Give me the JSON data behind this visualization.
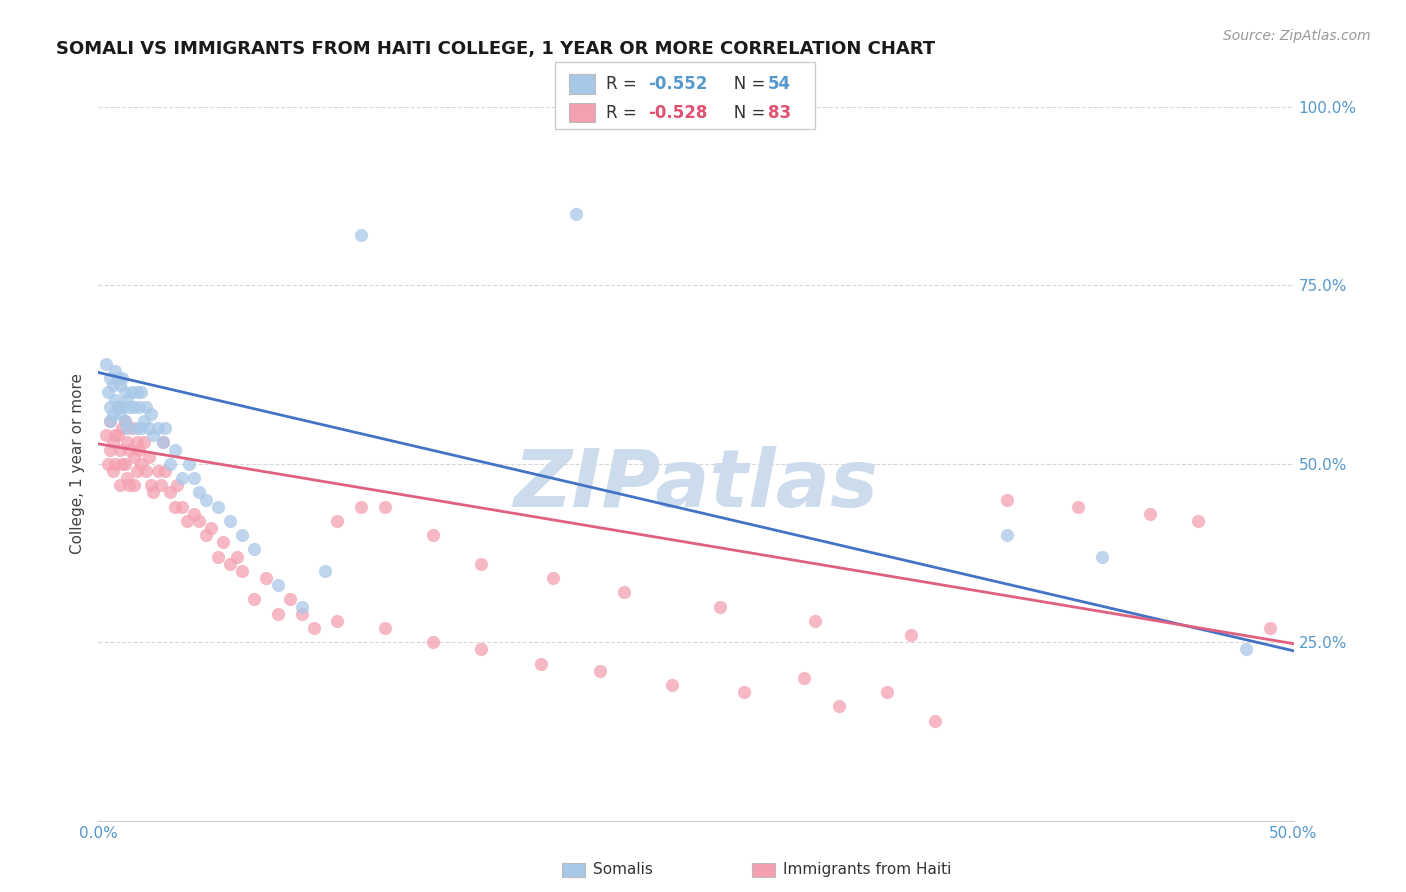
{
  "title": "SOMALI VS IMMIGRANTS FROM HAITI COLLEGE, 1 YEAR OR MORE CORRELATION CHART",
  "source": "Source: ZipAtlas.com",
  "ylabel_label": "College, 1 year or more",
  "x_min": 0.0,
  "x_max": 0.5,
  "y_min": 0.0,
  "y_max": 1.0,
  "background_color": "#ffffff",
  "grid_color": "#d8d8d8",
  "watermark_text": "ZIPatlas",
  "watermark_color": "#ccdcec",
  "legend_R1": "-0.552",
  "legend_N1": "54",
  "legend_R2": "-0.528",
  "legend_N2": "83",
  "somali_color": "#a8c8e8",
  "haiti_color": "#f4a0b0",
  "somali_line_color": "#4472c4",
  "haiti_line_color": "#e06080",
  "label_somali": "Somalis",
  "label_haiti": "Immigrants from Haiti",
  "somali_line": [
    0.0,
    0.628,
    0.5,
    0.238
  ],
  "haiti_line": [
    0.0,
    0.528,
    0.5,
    0.248
  ],
  "somali_x": [
    0.003,
    0.004,
    0.005,
    0.005,
    0.005,
    0.006,
    0.006,
    0.007,
    0.007,
    0.008,
    0.008,
    0.009,
    0.009,
    0.01,
    0.01,
    0.011,
    0.011,
    0.012,
    0.012,
    0.013,
    0.014,
    0.015,
    0.016,
    0.016,
    0.017,
    0.018,
    0.018,
    0.019,
    0.02,
    0.021,
    0.022,
    0.023,
    0.025,
    0.027,
    0.028,
    0.03,
    0.032,
    0.035,
    0.038,
    0.04,
    0.042,
    0.045,
    0.05,
    0.055,
    0.06,
    0.065,
    0.075,
    0.085,
    0.095,
    0.11,
    0.2,
    0.38,
    0.42,
    0.48
  ],
  "somali_y": [
    0.64,
    0.6,
    0.62,
    0.58,
    0.56,
    0.61,
    0.57,
    0.63,
    0.59,
    0.62,
    0.58,
    0.61,
    0.57,
    0.62,
    0.58,
    0.6,
    0.56,
    0.59,
    0.55,
    0.58,
    0.6,
    0.58,
    0.6,
    0.55,
    0.58,
    0.6,
    0.55,
    0.56,
    0.58,
    0.55,
    0.57,
    0.54,
    0.55,
    0.53,
    0.55,
    0.5,
    0.52,
    0.48,
    0.5,
    0.48,
    0.46,
    0.45,
    0.44,
    0.42,
    0.4,
    0.38,
    0.33,
    0.3,
    0.35,
    0.82,
    0.85,
    0.4,
    0.37,
    0.24
  ],
  "haiti_x": [
    0.003,
    0.004,
    0.005,
    0.005,
    0.006,
    0.006,
    0.007,
    0.007,
    0.008,
    0.008,
    0.009,
    0.009,
    0.01,
    0.01,
    0.011,
    0.011,
    0.012,
    0.012,
    0.013,
    0.013,
    0.014,
    0.015,
    0.015,
    0.016,
    0.016,
    0.017,
    0.018,
    0.019,
    0.02,
    0.021,
    0.022,
    0.023,
    0.025,
    0.026,
    0.027,
    0.028,
    0.03,
    0.032,
    0.033,
    0.035,
    0.037,
    0.04,
    0.042,
    0.045,
    0.047,
    0.05,
    0.052,
    0.055,
    0.058,
    0.06,
    0.065,
    0.07,
    0.075,
    0.08,
    0.085,
    0.09,
    0.1,
    0.11,
    0.12,
    0.14,
    0.16,
    0.19,
    0.22,
    0.26,
    0.3,
    0.34,
    0.38,
    0.41,
    0.44,
    0.46,
    0.49,
    0.295,
    0.33,
    0.1,
    0.12,
    0.14,
    0.16,
    0.185,
    0.21,
    0.24,
    0.27,
    0.31,
    0.35
  ],
  "haiti_y": [
    0.54,
    0.5,
    0.56,
    0.52,
    0.53,
    0.49,
    0.54,
    0.5,
    0.58,
    0.54,
    0.52,
    0.47,
    0.55,
    0.5,
    0.56,
    0.5,
    0.53,
    0.48,
    0.52,
    0.47,
    0.55,
    0.51,
    0.47,
    0.53,
    0.49,
    0.52,
    0.5,
    0.53,
    0.49,
    0.51,
    0.47,
    0.46,
    0.49,
    0.47,
    0.53,
    0.49,
    0.46,
    0.44,
    0.47,
    0.44,
    0.42,
    0.43,
    0.42,
    0.4,
    0.41,
    0.37,
    0.39,
    0.36,
    0.37,
    0.35,
    0.31,
    0.34,
    0.29,
    0.31,
    0.29,
    0.27,
    0.42,
    0.44,
    0.44,
    0.4,
    0.36,
    0.34,
    0.32,
    0.3,
    0.28,
    0.26,
    0.45,
    0.44,
    0.43,
    0.42,
    0.27,
    0.2,
    0.18,
    0.28,
    0.27,
    0.25,
    0.24,
    0.22,
    0.21,
    0.19,
    0.18,
    0.16,
    0.14
  ]
}
